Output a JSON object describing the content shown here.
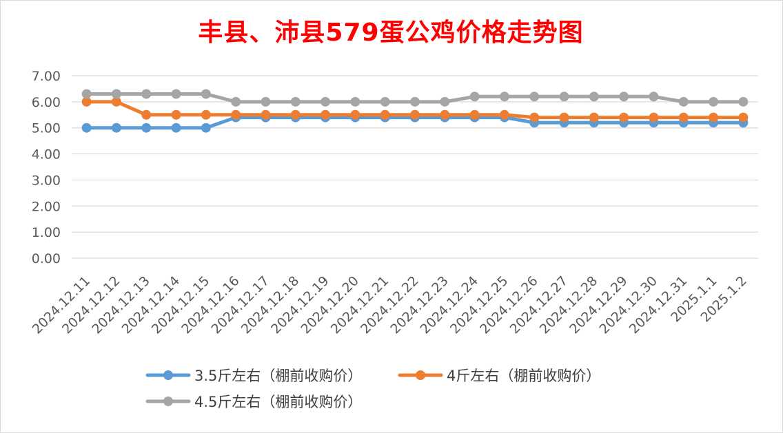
{
  "chart_data": {
    "type": "line",
    "title": "丰县、沛县579蛋公鸡价格走势图",
    "xlabel": "",
    "ylabel": "",
    "ylim": [
      0,
      7
    ],
    "yticks": [
      "0.00",
      "1.00",
      "2.00",
      "3.00",
      "4.00",
      "5.00",
      "6.00",
      "7.00"
    ],
    "grid": true,
    "legend_position": "bottom",
    "categories": [
      "2024.12.11",
      "2024.12.12",
      "2024.12.13",
      "2024.12.14",
      "2024.12.15",
      "2024.12.16",
      "2024.12.17",
      "2024.12.18",
      "2024.12.19",
      "2024.12.20",
      "2024.12.21",
      "2024.12.22",
      "2024.12.23",
      "2024.12.24",
      "2024.12.25",
      "2024.12.26",
      "2024.12.27",
      "2024.12.28",
      "2024.12.29",
      "2024.12.30",
      "2024.12.31",
      "2025.1.1",
      "2025.1.2"
    ],
    "series": [
      {
        "name": "3.5斤左右（棚前收购价）",
        "color": "#5b9bd5",
        "values": [
          5.0,
          5.0,
          5.0,
          5.0,
          5.0,
          5.4,
          5.4,
          5.4,
          5.4,
          5.4,
          5.4,
          5.4,
          5.4,
          5.4,
          5.4,
          5.2,
          5.2,
          5.2,
          5.2,
          5.2,
          5.2,
          5.2,
          5.2
        ]
      },
      {
        "name": "4斤左右（棚前收购价）",
        "color": "#ed7d31",
        "values": [
          6.0,
          6.0,
          5.5,
          5.5,
          5.5,
          5.5,
          5.5,
          5.5,
          5.5,
          5.5,
          5.5,
          5.5,
          5.5,
          5.5,
          5.5,
          5.4,
          5.4,
          5.4,
          5.4,
          5.4,
          5.4,
          5.4,
          5.4
        ]
      },
      {
        "name": "4.5斤左右（棚前收购价）",
        "color": "#a5a5a5",
        "values": [
          6.3,
          6.3,
          6.3,
          6.3,
          6.3,
          6.0,
          6.0,
          6.0,
          6.0,
          6.0,
          6.0,
          6.0,
          6.0,
          6.2,
          6.2,
          6.2,
          6.2,
          6.2,
          6.2,
          6.2,
          6.0,
          6.0,
          6.0
        ]
      }
    ]
  }
}
